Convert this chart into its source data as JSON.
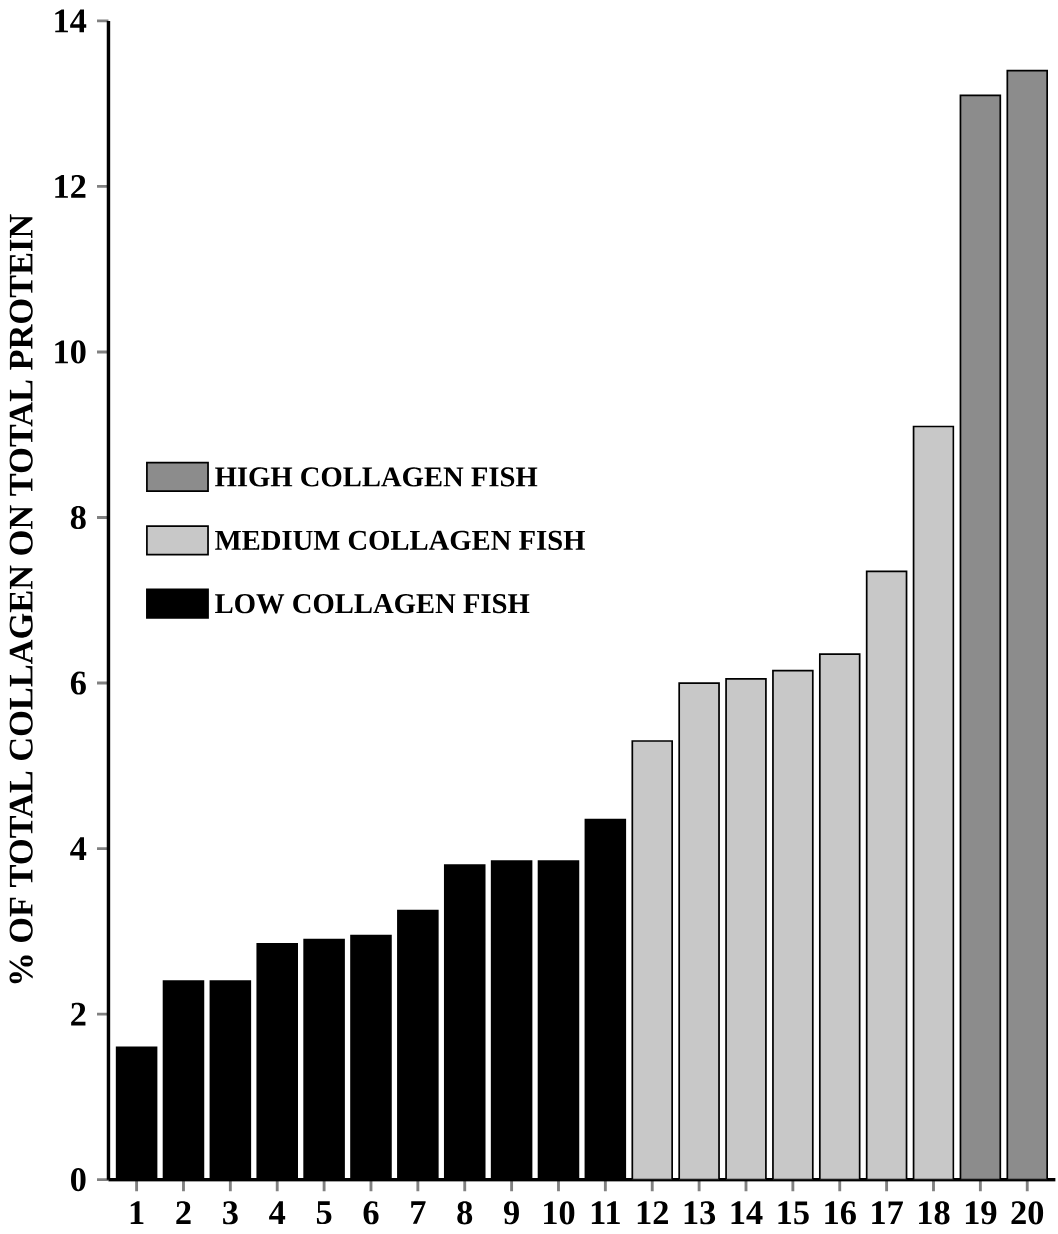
{
  "chart_data": {
    "type": "bar",
    "ylabel": "% OF TOTAL COLLAGEN ON TOTAL PROTEIN",
    "categories": [
      "1",
      "2",
      "3",
      "4",
      "5",
      "6",
      "7",
      "8",
      "9",
      "10",
      "11",
      "12",
      "13",
      "14",
      "15",
      "16",
      "17",
      "18",
      "19",
      "20"
    ],
    "series": [
      {
        "name": "HIGH COLLAGEN FISH",
        "color": "#8c8c8c",
        "values": [
          null,
          null,
          null,
          null,
          null,
          null,
          null,
          null,
          null,
          null,
          null,
          null,
          null,
          null,
          null,
          null,
          null,
          null,
          13.1,
          13.4
        ]
      },
      {
        "name": "MEDIUM COLLAGEN FISH",
        "color": "#c8c8c8",
        "values": [
          null,
          null,
          null,
          null,
          null,
          null,
          null,
          null,
          null,
          null,
          null,
          5.3,
          6.0,
          6.05,
          6.15,
          6.35,
          7.35,
          9.1,
          null,
          null
        ]
      },
      {
        "name": "LOW COLLAGEN FISH",
        "color": "#000000",
        "values": [
          1.6,
          2.4,
          2.4,
          2.85,
          2.9,
          2.95,
          3.25,
          3.8,
          3.85,
          3.85,
          4.35,
          null,
          null,
          null,
          null,
          null,
          null,
          null,
          null,
          null
        ]
      }
    ],
    "ylim": [
      0,
      14
    ],
    "yticks": [
      0,
      2,
      4,
      6,
      8,
      10,
      12,
      14
    ],
    "grid": false,
    "legend": "left"
  }
}
